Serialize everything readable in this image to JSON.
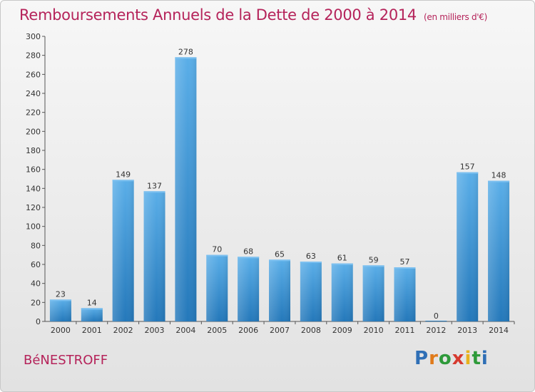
{
  "header": {
    "title": "Remboursements Annuels de la Dette de 2000 à 2014",
    "unit": "(en milliers d'€)"
  },
  "commune": "BéNESTROFF",
  "logo": "Proxiti",
  "colors": {
    "bar": "#3a8fd4",
    "bar_light": "#5aaae6",
    "title": "#b5235a"
  },
  "chart_data": {
    "type": "bar",
    "title": "Remboursements Annuels de la Dette de 2000 à 2014",
    "xlabel": "",
    "ylabel": "",
    "categories": [
      "2000",
      "2001",
      "2002",
      "2003",
      "2004",
      "2005",
      "2006",
      "2007",
      "2008",
      "2009",
      "2010",
      "2011",
      "2012",
      "2013",
      "2014"
    ],
    "values": [
      23,
      14,
      149,
      137,
      278,
      70,
      68,
      65,
      63,
      61,
      59,
      57,
      0,
      157,
      148
    ],
    "ylim": [
      0,
      300
    ],
    "yticks": [
      0,
      20,
      40,
      60,
      80,
      100,
      120,
      140,
      160,
      180,
      200,
      220,
      240,
      260,
      280,
      300
    ],
    "grid": false,
    "legend": "none"
  }
}
